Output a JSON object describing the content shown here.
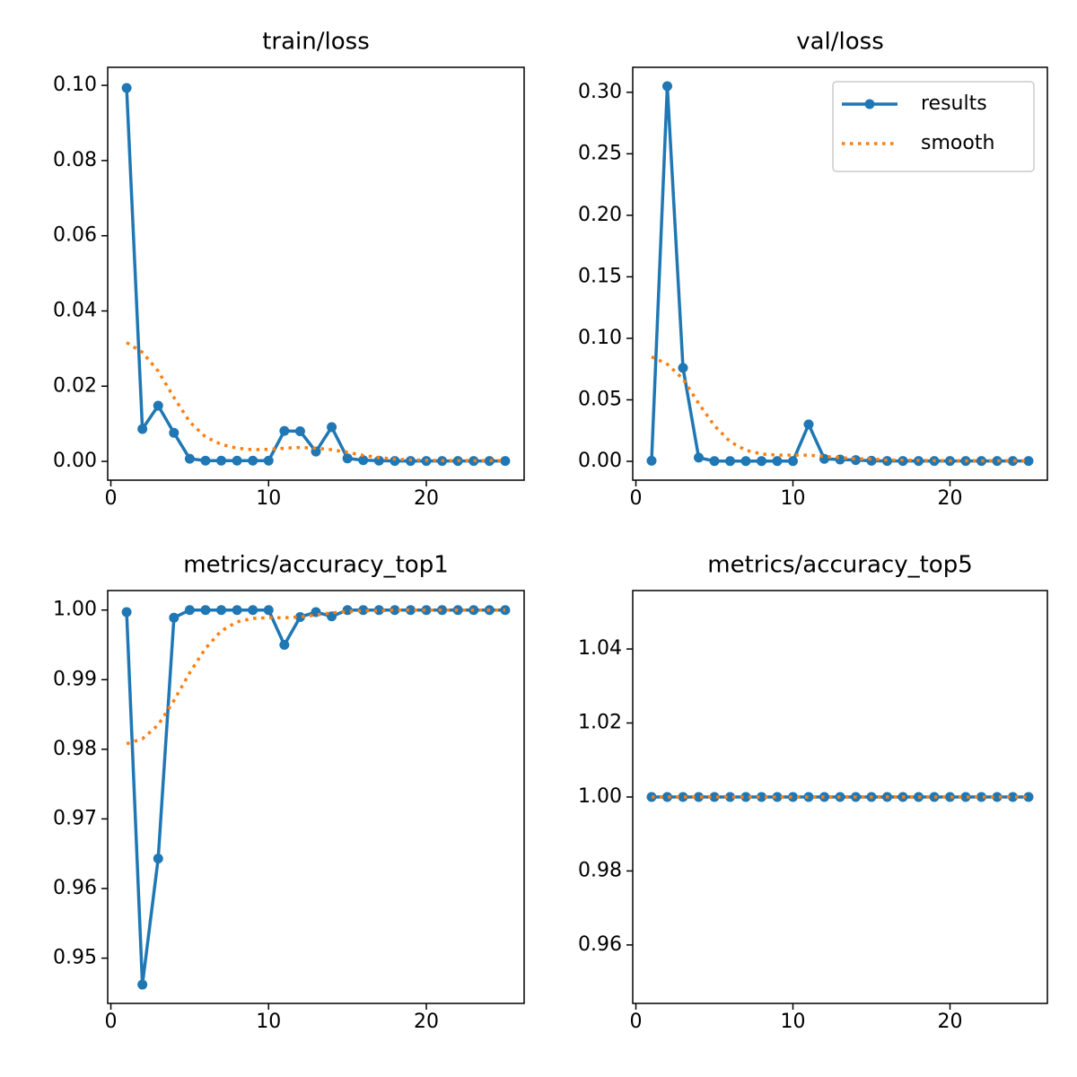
{
  "chart_data": [
    {
      "type": "line",
      "title": "train/loss",
      "x": [
        1,
        2,
        3,
        4,
        5,
        6,
        7,
        8,
        9,
        10,
        11,
        12,
        13,
        14,
        15,
        16,
        17,
        18,
        19,
        20,
        21,
        22,
        23,
        24,
        25
      ],
      "xlim": [
        -0.2,
        26.2
      ],
      "xticks": [
        0,
        10,
        20
      ],
      "ylim": [
        -0.005,
        0.1048
      ],
      "yticks": [
        {
          "value": 0,
          "label": "0.00"
        },
        {
          "value": 0.02,
          "label": "0.02"
        },
        {
          "value": 0.04,
          "label": "0.04"
        },
        {
          "value": 0.06,
          "label": "0.06"
        },
        {
          "value": 0.08,
          "label": "0.08"
        },
        {
          "value": 0.1,
          "label": "0.10"
        }
      ],
      "series": [
        {
          "color": "#1f77b4",
          "linestyle": "solid",
          "markers": true,
          "values": [
            0.0993,
            0.0086,
            0.0148,
            0.0076,
            0.0007,
            0.0002,
            0.0002,
            0.0002,
            0.0002,
            0.0002,
            0.0081,
            0.008,
            0.0026,
            0.0091,
            0.0008,
            0.0003,
            0.0002,
            0.0001,
            0.0001,
            0.0001,
            0.0001,
            0.0001,
            0.0001,
            0.0001,
            0.0001
          ]
        },
        {
          "color": "#ff7f0e",
          "linestyle": "dotted",
          "markers": false,
          "values": [
            0.0316,
            0.029,
            0.024,
            0.017,
            0.0105,
            0.0065,
            0.0045,
            0.0035,
            0.0031,
            0.0032,
            0.0035,
            0.0037,
            0.0035,
            0.0031,
            0.0024,
            0.0016,
            0.001,
            0.0006,
            0.0004,
            0.0003,
            0.0002,
            0.0002,
            0.0002,
            0.0002,
            0.0002
          ]
        }
      ]
    },
    {
      "type": "line",
      "title": "val/loss",
      "legend": "upper right",
      "x": [
        1,
        2,
        3,
        4,
        5,
        6,
        7,
        8,
        9,
        10,
        11,
        12,
        13,
        14,
        15,
        16,
        17,
        18,
        19,
        20,
        21,
        22,
        23,
        24,
        25
      ],
      "xlim": [
        -0.2,
        26.2
      ],
      "xticks": [
        0,
        10,
        20
      ],
      "ylim": [
        -0.0153,
        0.3203
      ],
      "yticks": [
        {
          "value": 0,
          "label": "0.00"
        },
        {
          "value": 0.05,
          "label": "0.05"
        },
        {
          "value": 0.1,
          "label": "0.10"
        },
        {
          "value": 0.15,
          "label": "0.15"
        },
        {
          "value": 0.2,
          "label": "0.20"
        },
        {
          "value": 0.25,
          "label": "0.25"
        },
        {
          "value": 0.3,
          "label": "0.30"
        }
      ],
      "series": [
        {
          "name": "results",
          "color": "#1f77b4",
          "linestyle": "solid",
          "markers": true,
          "values": [
            0.0005,
            0.305,
            0.076,
            0.003,
            0.0002,
            0.0002,
            0.0002,
            0.0002,
            0.0002,
            0.0002,
            0.03,
            0.002,
            0.0015,
            0.001,
            0.0005,
            0.0003,
            0.0003,
            0.0003,
            0.0003,
            0.0003,
            0.0003,
            0.0003,
            0.0003,
            0.0003,
            0.0003
          ]
        },
        {
          "name": "smooth",
          "color": "#ff7f0e",
          "linestyle": "dotted",
          "markers": false,
          "values": [
            0.085,
            0.079,
            0.067,
            0.047,
            0.029,
            0.016,
            0.009,
            0.006,
            0.005,
            0.005,
            0.005,
            0.004,
            0.003,
            0.002,
            0.002,
            0.001,
            0.001,
            0.0008,
            0.0006,
            0.0005,
            0.0005,
            0.0005,
            0.0005,
            0.0005,
            0.0005
          ]
        }
      ]
    },
    {
      "type": "line",
      "title": "metrics/accuracy_top1",
      "x": [
        1,
        2,
        3,
        4,
        5,
        6,
        7,
        8,
        9,
        10,
        11,
        12,
        13,
        14,
        15,
        16,
        17,
        18,
        19,
        20,
        21,
        22,
        23,
        24,
        25
      ],
      "xlim": [
        -0.2,
        26.2
      ],
      "xticks": [
        0,
        10,
        20
      ],
      "ylim": [
        0.9435,
        1.0028
      ],
      "yticks": [
        {
          "value": 0.95,
          "label": "0.95"
        },
        {
          "value": 0.96,
          "label": "0.96"
        },
        {
          "value": 0.97,
          "label": "0.97"
        },
        {
          "value": 0.98,
          "label": "0.98"
        },
        {
          "value": 0.99,
          "label": "0.99"
        },
        {
          "value": 1,
          "label": "1.00"
        }
      ],
      "series": [
        {
          "color": "#1f77b4",
          "linestyle": "solid",
          "markers": true,
          "values": [
            0.9997,
            0.9462,
            0.9643,
            0.9989,
            1,
            1,
            1,
            1,
            1,
            1,
            0.995,
            0.999,
            0.9997,
            0.9991,
            1,
            1,
            1,
            1,
            1,
            1,
            1,
            1,
            1,
            1,
            1
          ]
        },
        {
          "color": "#ff7f0e",
          "linestyle": "dotted",
          "markers": false,
          "values": [
            0.9808,
            0.9815,
            0.9835,
            0.987,
            0.991,
            0.9945,
            0.997,
            0.9983,
            0.9988,
            0.9989,
            0.9989,
            0.999,
            0.9993,
            0.9996,
            0.9998,
            0.9999,
            0.9999,
            1,
            1,
            1,
            1,
            1,
            1,
            1,
            1
          ]
        }
      ]
    },
    {
      "type": "line",
      "title": "metrics/accuracy_top5",
      "x": [
        1,
        2,
        3,
        4,
        5,
        6,
        7,
        8,
        9,
        10,
        11,
        12,
        13,
        14,
        15,
        16,
        17,
        18,
        19,
        20,
        21,
        22,
        23,
        24,
        25
      ],
      "xlim": [
        -0.2,
        26.2
      ],
      "xticks": [
        0,
        10,
        20
      ],
      "ylim": [
        0.9442,
        1.0558
      ],
      "yticks": [
        {
          "value": 0.96,
          "label": "0.96"
        },
        {
          "value": 0.98,
          "label": "0.98"
        },
        {
          "value": 1,
          "label": "1.00"
        },
        {
          "value": 1.02,
          "label": "1.02"
        },
        {
          "value": 1.04,
          "label": "1.04"
        }
      ],
      "series": [
        {
          "color": "#1f77b4",
          "linestyle": "solid",
          "markers": true,
          "values": [
            1,
            1,
            1,
            1,
            1,
            1,
            1,
            1,
            1,
            1,
            1,
            1,
            1,
            1,
            1,
            1,
            1,
            1,
            1,
            1,
            1,
            1,
            1,
            1,
            1
          ]
        },
        {
          "color": "#ff7f0e",
          "linestyle": "dotted",
          "markers": false,
          "values": [
            1,
            1,
            1,
            1,
            1,
            1,
            1,
            1,
            1,
            1,
            1,
            1,
            1,
            1,
            1,
            1,
            1,
            1,
            1,
            1,
            1,
            1,
            1,
            1,
            1
          ]
        }
      ]
    }
  ]
}
